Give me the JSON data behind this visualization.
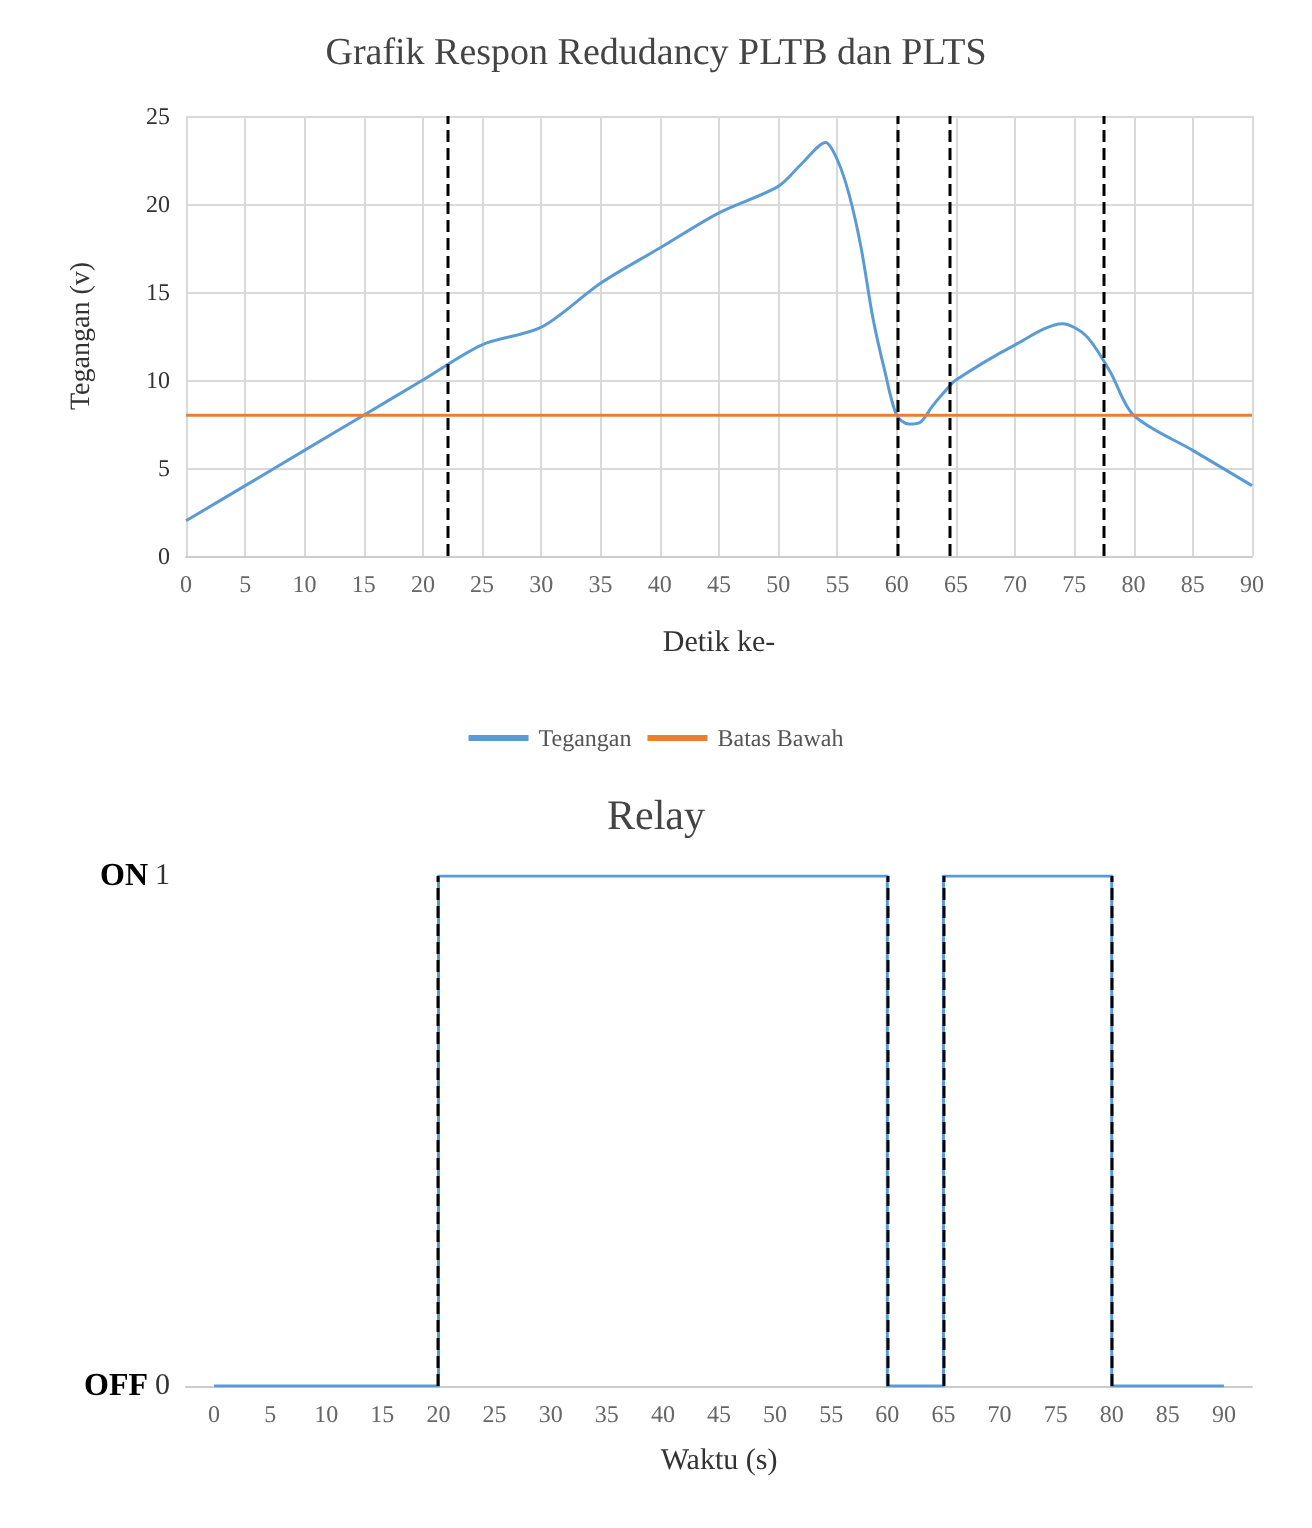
{
  "chart_data": [
    {
      "type": "line",
      "title": "Grafik Respon Redudancy PLTB dan PLTS",
      "xlabel": "Detik ke-",
      "ylabel": "Tegangan (v)",
      "xlim": [
        0,
        90
      ],
      "xticks": [
        0,
        5,
        10,
        15,
        20,
        25,
        30,
        35,
        40,
        45,
        50,
        55,
        60,
        65,
        70,
        75,
        80,
        85,
        90
      ],
      "ylim": [
        0,
        25
      ],
      "yticks": [
        0,
        5,
        10,
        15,
        20,
        25
      ],
      "grid": true,
      "legend": "bottom",
      "series": [
        {
          "name": "Tegangan",
          "color": "#5b9bd5",
          "x": [
            0,
            5,
            10,
            15,
            20,
            25,
            30,
            35,
            40,
            45,
            50,
            52,
            54,
            55,
            56,
            57,
            58,
            59,
            60,
            61,
            62,
            63,
            64,
            65,
            70,
            74,
            76,
            78,
            80,
            85,
            90
          ],
          "values": [
            2,
            4,
            6,
            8,
            10,
            12,
            13,
            15.5,
            17.5,
            19.5,
            21,
            22.3,
            23.5,
            22.5,
            20.5,
            17.5,
            13.5,
            10.5,
            8,
            7.5,
            7.6,
            8.5,
            9.3,
            10,
            12,
            13.2,
            12.5,
            10.5,
            8,
            6,
            4
          ]
        },
        {
          "name": "Batas Bawah",
          "color": "#ed7d31",
          "x": [
            0,
            90
          ],
          "values": [
            8,
            8
          ]
        }
      ],
      "ref_lines": [
        {
          "axis": "x",
          "value": 22,
          "color": "#000000",
          "line_style": "dashed"
        },
        {
          "axis": "x",
          "value": 60,
          "color": "#000000",
          "line_style": "dashed"
        },
        {
          "axis": "x",
          "value": 64.5,
          "color": "#000000",
          "line_style": "dashed"
        },
        {
          "axis": "x",
          "value": 77.5,
          "color": "#000000",
          "line_style": "dashed"
        }
      ]
    },
    {
      "type": "line",
      "title": "Relay",
      "xlabel": "Waktu (s)",
      "xlim": [
        -2.5,
        92.5
      ],
      "xticks": [
        0,
        5,
        10,
        15,
        20,
        25,
        30,
        35,
        40,
        45,
        50,
        55,
        60,
        65,
        70,
        75,
        80,
        85,
        90
      ],
      "ylim": [
        0,
        1
      ],
      "yticks": [
        0,
        1
      ],
      "annotations": [
        "ON",
        "OFF"
      ],
      "series": [
        {
          "color": "#5b9bd5",
          "x": [
            0,
            20,
            20,
            60,
            60,
            65,
            65,
            80,
            80,
            90
          ],
          "values": [
            0,
            0,
            1,
            1,
            0,
            0,
            1,
            1,
            0,
            0
          ]
        }
      ],
      "ref_lines": [
        {
          "axis": "x",
          "value": 20,
          "color": "#000000",
          "line_style": "dashed"
        },
        {
          "axis": "x",
          "value": 60,
          "color": "#000000",
          "line_style": "dashed"
        },
        {
          "axis": "x",
          "value": 65,
          "color": "#000000",
          "line_style": "dashed"
        },
        {
          "axis": "x",
          "value": 80,
          "color": "#000000",
          "line_style": "dashed"
        }
      ]
    }
  ]
}
